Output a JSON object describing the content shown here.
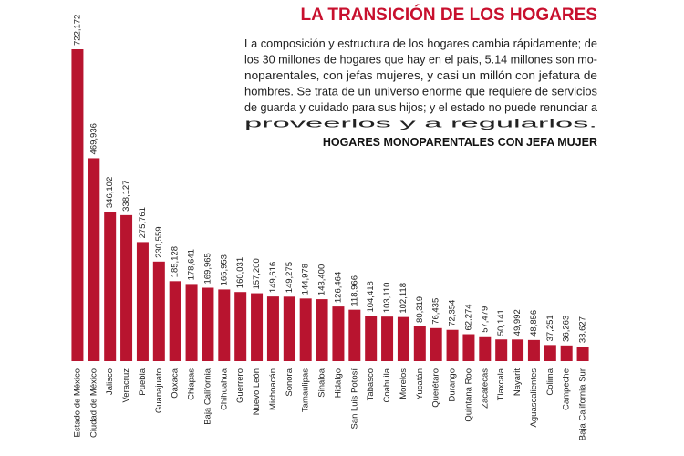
{
  "chart_data": {
    "type": "bar",
    "title": "LA TRANSICIÓN DE LOS HOGARES",
    "description": [
      "La composición y estructura de los hogares cambia rápidamente; de",
      "los 30 millones de hogares que hay en el país, 5.14 millones son mo-",
      "noparentales, con jefas mujeres, y casi un millón con jefatura de",
      "hombres. Se trata de un universo enorme que requiere de servicios",
      "de guarda y cuidado para sus hijos; y el estado no puede renunciar a",
      "proveerlos y a regularlos."
    ],
    "subtitle": "HOGARES MONOPARENTALES CON JEFA MUJER",
    "color": "#b8142f",
    "categories": [
      "Estado de México",
      "Ciudad de México",
      "Jalisco",
      "Veracruz",
      "Puebla",
      "Guanajuato",
      "Oaxaca",
      "Chiapas",
      "Baja California",
      "Chihuahua",
      "Guerrero",
      "Nuevo León",
      "Michoacán",
      "Sonora",
      "Tamaulipas",
      "Sinaloa",
      "Hidalgo",
      "San Luis Potosí",
      "Tabasco",
      "Coahuila",
      "Morelos",
      "Yucatán",
      "Querétaro",
      "Durango",
      "Quintana Roo",
      "Zacatecas",
      "Tlaxcala",
      "Nayarit",
      "Aguascalientes",
      "Colima",
      "Campeche",
      "Baja California Sur"
    ],
    "values": [
      722172,
      469936,
      346102,
      338127,
      275761,
      230559,
      185128,
      178641,
      169965,
      165953,
      160031,
      157200,
      149616,
      149275,
      144978,
      143400,
      126464,
      118966,
      104418,
      103110,
      102118,
      80319,
      76435,
      72354,
      62274,
      57479,
      50141,
      49992,
      48856,
      37251,
      36263,
      33627
    ],
    "value_labels": [
      "722,172",
      "469,936",
      "346,102",
      "338,127",
      "275,761",
      "230,559",
      "185,128",
      "178,641",
      "169,965",
      "165,953",
      "160,031",
      "157,200",
      "149,616",
      "149,275",
      "144,978",
      "143,400",
      "126,464",
      "118,966",
      "104,418",
      "103,110",
      "102,118",
      "80,319",
      "76,435",
      "72,354",
      "62,274",
      "57,479",
      "50,141",
      "49,992",
      "48,856",
      "37,251",
      "36,263",
      "33,627"
    ]
  }
}
